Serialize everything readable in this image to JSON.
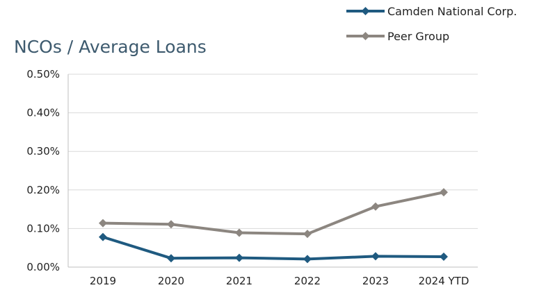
{
  "chart_data": {
    "type": "line",
    "title": "NCOs / Average Loans",
    "categories": [
      "2019",
      "2020",
      "2021",
      "2022",
      "2023",
      "2024 YTD"
    ],
    "series": [
      {
        "name": "Camden National Corp.",
        "color": "#1f5a80",
        "values": [
          0.078,
          0.023,
          0.024,
          0.021,
          0.028,
          0.027
        ]
      },
      {
        "name": "Peer Group",
        "color": "#8c8680",
        "values": [
          0.114,
          0.111,
          0.089,
          0.086,
          0.157,
          0.194
        ]
      }
    ],
    "ylim": [
      0,
      0.5
    ],
    "yticks": [
      0,
      0.1,
      0.2,
      0.3,
      0.4,
      0.5
    ],
    "ytick_labels": [
      "0.00%",
      "0.10%",
      "0.20%",
      "0.30%",
      "0.40%",
      "0.50%"
    ],
    "grid": true,
    "legend_position": "top-right",
    "gridline_color": "#d9d9d9"
  }
}
